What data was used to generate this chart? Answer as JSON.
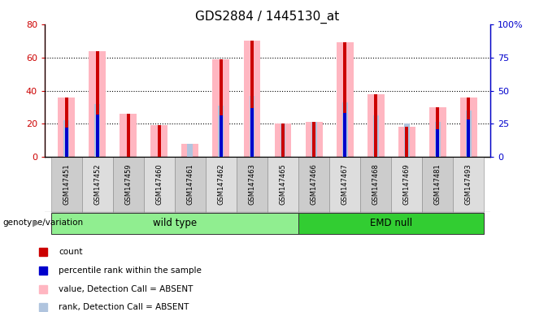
{
  "title": "GDS2884 / 1445130_at",
  "samples": [
    "GSM147451",
    "GSM147452",
    "GSM147459",
    "GSM147460",
    "GSM147461",
    "GSM147462",
    "GSM147463",
    "GSM147465",
    "GSM147466",
    "GSM147467",
    "GSM147468",
    "GSM147469",
    "GSM147481",
    "GSM147493"
  ],
  "count_values": [
    36,
    64,
    26,
    19,
    0,
    59,
    70,
    20,
    21,
    69,
    38,
    18,
    30,
    36
  ],
  "percentile_values": [
    22,
    32,
    0,
    0,
    0,
    31,
    37,
    0,
    0,
    33,
    0,
    0,
    21,
    28
  ],
  "absent_value_values": [
    36,
    64,
    26,
    19,
    8,
    59,
    70,
    20,
    21,
    69,
    38,
    18,
    30,
    36
  ],
  "absent_rank_values": [
    22,
    32,
    0,
    0,
    8,
    31,
    37,
    20,
    21,
    33,
    25,
    20,
    21,
    28
  ],
  "groups": [
    {
      "label": "wild type",
      "start": 0,
      "end": 8,
      "color": "#90EE90"
    },
    {
      "label": "EMD null",
      "start": 8,
      "end": 14,
      "color": "#32CD32"
    }
  ],
  "ylim_left": [
    0,
    80
  ],
  "ylim_right": [
    0,
    100
  ],
  "yticks_left": [
    0,
    20,
    40,
    60,
    80
  ],
  "ytick_labels_right": [
    "0",
    "25",
    "50",
    "75",
    "100%"
  ],
  "left_axis_color": "#CC0000",
  "right_axis_color": "#0000CC",
  "color_count": "#CC0000",
  "color_percentile": "#0000CC",
  "color_absent_value": "#FFB6C1",
  "color_absent_rank": "#B0C4DE",
  "genotype_label": "genotype/variation",
  "legend_items": [
    {
      "color": "#CC0000",
      "label": "count"
    },
    {
      "color": "#0000CC",
      "label": "percentile rank within the sample"
    },
    {
      "color": "#FFB6C1",
      "label": "value, Detection Call = ABSENT"
    },
    {
      "color": "#B0C4DE",
      "label": "rank, Detection Call = ABSENT"
    }
  ],
  "grid_dotted_at": [
    20,
    40,
    60
  ],
  "absent_bar_width": 0.55,
  "rank_bar_width": 0.18,
  "count_bar_width": 0.1
}
